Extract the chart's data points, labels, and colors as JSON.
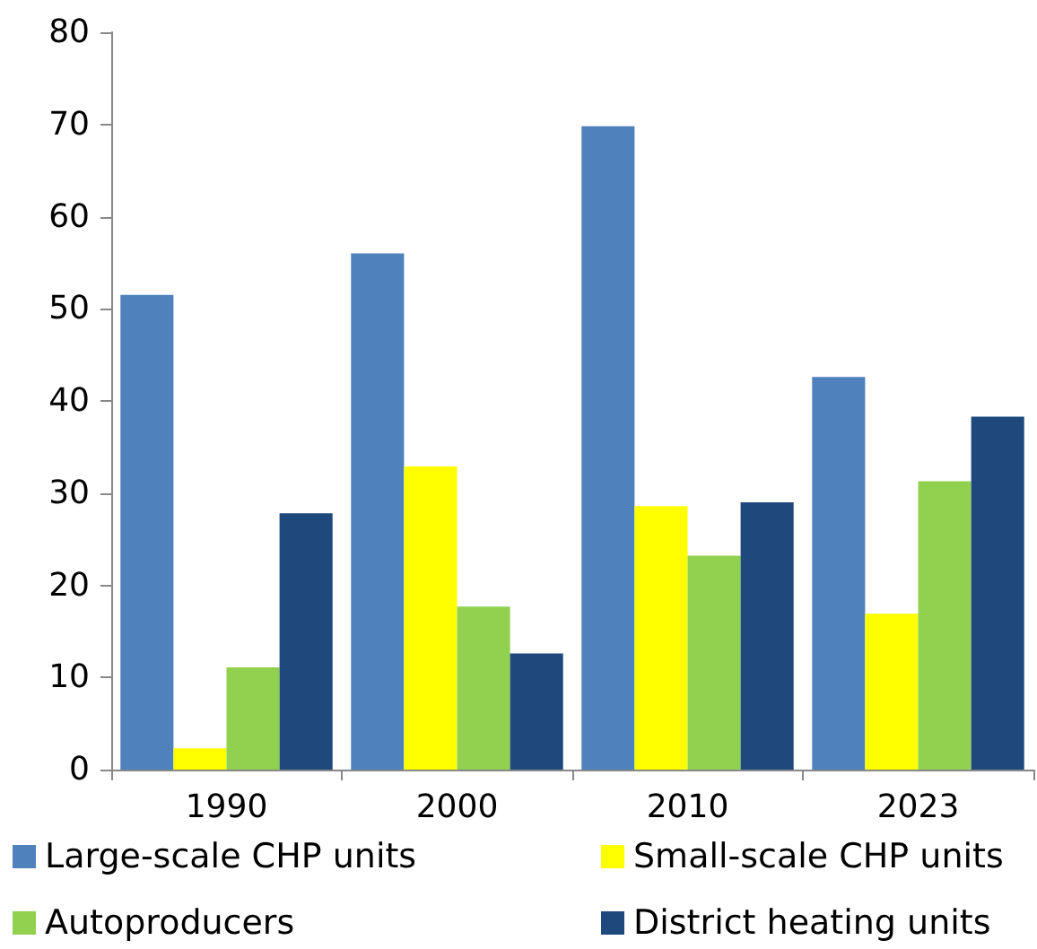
{
  "chart_data": {
    "type": "bar",
    "categories": [
      "1990",
      "2000",
      "2010",
      "2023"
    ],
    "series": [
      {
        "name": "Large-scale CHP units",
        "color": "#4f81bd",
        "values": [
          51.5,
          56.0,
          69.8,
          42.6
        ]
      },
      {
        "name": "Small-scale CHP units",
        "color": "#ffff00",
        "values": [
          2.3,
          32.9,
          28.6,
          16.9
        ]
      },
      {
        "name": "Autoproducers",
        "color": "#92d050",
        "values": [
          11.1,
          17.7,
          23.2,
          31.3
        ]
      },
      {
        "name": "District heating units",
        "color": "#1f497d",
        "values": [
          27.8,
          12.6,
          29.0,
          38.3
        ]
      }
    ],
    "ylim": [
      0,
      80
    ],
    "yticks": [
      0,
      10,
      20,
      30,
      40,
      50,
      60,
      70,
      80
    ],
    "grid": false,
    "legend": "bottom"
  }
}
